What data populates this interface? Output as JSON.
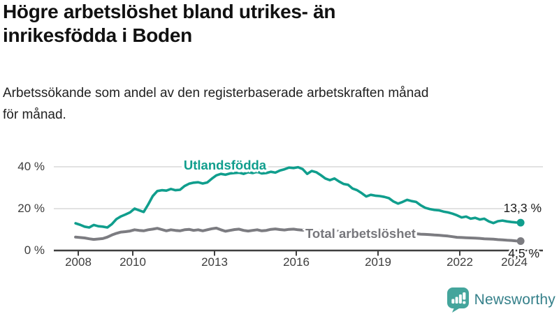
{
  "header": {
    "title_lines": [
      "Högre arbetslöshet bland utrikes- än",
      "inrikesfödda i Boden"
    ],
    "subtitle_lines": [
      "Arbetssökande som andel av den registerbaserade arbetskraften månad",
      "för månad."
    ]
  },
  "chart_data": {
    "type": "line",
    "title": "Högre arbetslöshet bland utrikes- än inrikesfödda i Boden",
    "subtitle": "Arbetssökande som andel av den registerbaserade arbetskraften månad för månad.",
    "unit": "%",
    "grid": true,
    "xlim": [
      2007.7,
      2025.1
    ],
    "ylim": [
      0,
      44
    ],
    "x_start": 2007.9,
    "x_step": 0.16667,
    "x_ticks": [
      2008,
      2010,
      2013,
      2016,
      2019,
      2022,
      2024
    ],
    "x_tick_labels": [
      "2008",
      "2010",
      "2013",
      "2016",
      "2019",
      "2022",
      "2024"
    ],
    "y_ticks": [
      0,
      20,
      40
    ],
    "y_tick_labels": [
      "0 %",
      "20 %",
      "40 %"
    ],
    "series": [
      {
        "name": "Utlandsfödda",
        "color": "#109e8d",
        "end_label": "13,3 %",
        "end_value": 13.3,
        "values": [
          13.0,
          12.3,
          11.4,
          11.0,
          12.2,
          11.6,
          11.4,
          11.0,
          12.6,
          15.0,
          16.3,
          17.2,
          18.2,
          20.0,
          19.2,
          18.4,
          22.0,
          26.0,
          28.4,
          28.8,
          28.6,
          29.4,
          28.8,
          29.0,
          30.8,
          31.9,
          32.4,
          32.6,
          32.0,
          32.5,
          34.3,
          35.9,
          36.6,
          36.2,
          36.8,
          37.0,
          37.2,
          36.6,
          37.4,
          37.0,
          37.6,
          36.8,
          37.0,
          37.6,
          37.2,
          38.2,
          38.8,
          39.6,
          39.4,
          39.8,
          38.9,
          36.6,
          38.0,
          37.4,
          36.0,
          34.4,
          33.6,
          34.4,
          33.0,
          31.8,
          31.4,
          29.6,
          28.8,
          27.4,
          25.8,
          26.6,
          26.2,
          26.0,
          25.6,
          25.0,
          23.4,
          22.4,
          23.2,
          24.2,
          23.6,
          23.2,
          21.6,
          20.4,
          19.8,
          19.4,
          19.2,
          18.6,
          18.2,
          17.6,
          16.8,
          15.8,
          16.2,
          15.2,
          15.6,
          14.8,
          15.2,
          13.9,
          13.1,
          14.0,
          14.3,
          13.9,
          13.6,
          13.4,
          13.3
        ]
      },
      {
        "name": "Total arbetslöshet",
        "color": "#7c7c81",
        "end_label": "4,5 %",
        "end_value": 4.5,
        "values": [
          6.4,
          6.2,
          6.0,
          5.6,
          5.3,
          5.5,
          5.7,
          6.4,
          7.4,
          8.2,
          8.8,
          9.0,
          9.3,
          9.9,
          9.6,
          9.4,
          9.9,
          10.2,
          10.6,
          10.0,
          9.4,
          9.9,
          9.6,
          9.4,
          9.9,
          10.1,
          9.6,
          9.9,
          9.4,
          9.9,
          10.4,
          10.7,
          9.9,
          9.2,
          9.6,
          10.0,
          10.2,
          9.6,
          9.3,
          9.6,
          9.9,
          9.4,
          9.6,
          10.1,
          10.3,
          10.0,
          9.8,
          10.1,
          10.2,
          9.9,
          9.7,
          9.9,
          9.6,
          9.4,
          9.5,
          9.3,
          9.2,
          9.4,
          9.1,
          8.9,
          8.8,
          8.6,
          8.5,
          8.4,
          8.3,
          8.2,
          8.2,
          8.0,
          7.9,
          7.8,
          7.8,
          7.7,
          7.9,
          8.3,
          8.2,
          8.0,
          7.8,
          7.7,
          7.6,
          7.4,
          7.3,
          7.1,
          6.9,
          6.6,
          6.3,
          6.2,
          6.1,
          6.0,
          5.9,
          5.8,
          5.6,
          5.5,
          5.4,
          5.2,
          5.1,
          4.9,
          4.8,
          4.6,
          4.5
        ]
      }
    ],
    "legend_position": "inline-labels"
  },
  "footer": {
    "brand": "Newsworthy",
    "logo_icon": "bar-chart-speech-bubble-icon",
    "brand_color": "#44a59c"
  },
  "colors": {
    "series_1": "#109e8d",
    "series_2": "#7c7c81",
    "gridline": "#d9d9d9",
    "axis": "#3f3f3f",
    "text": "#3d3d3d"
  }
}
